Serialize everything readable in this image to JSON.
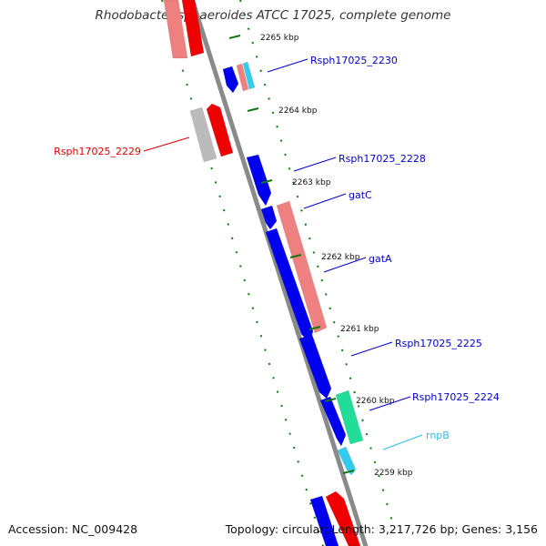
{
  "title": "Rhodobacter sphaeroides ATCC 17025, complete genome",
  "footer": {
    "accession": "Accession: NC_009428",
    "summary": "Topology: circular; Length: 3,217,726 bp; Genes: 3,156"
  },
  "ticks": [
    {
      "label": "2265 kbp"
    },
    {
      "label": "2264 kbp"
    },
    {
      "label": "2263 kbp"
    },
    {
      "label": "2262 kbp"
    },
    {
      "label": "2261 kbp"
    },
    {
      "label": "2260 kbp"
    },
    {
      "label": "2259 kbp"
    }
  ],
  "genes": [
    {
      "label": "Rsph17025_2230",
      "color": "#0000cc"
    },
    {
      "label": "Rsph17025_2229",
      "color": "#dd0000"
    },
    {
      "label": "Rsph17025_2228",
      "color": "#0000cc"
    },
    {
      "label": "gatC",
      "color": "#0000cc"
    },
    {
      "label": "gatA",
      "color": "#0000cc"
    },
    {
      "label": "Rsph17025_2225",
      "color": "#0000cc"
    },
    {
      "label": "Rsph17025_2224",
      "color": "#0000cc"
    },
    {
      "label": "rnpB",
      "color": "#33bbdd"
    }
  ],
  "colors": {
    "forward_cds": "#ee0000",
    "forward_cds_light": "#ee8080",
    "reverse_cds": "#0000ee",
    "reverse_cds_light": "#ee8888",
    "rna": "#33ccee",
    "trna": "#22dd99",
    "pseudo": "#bbbbbb",
    "backbone": "#999999",
    "tick": "#117711"
  }
}
